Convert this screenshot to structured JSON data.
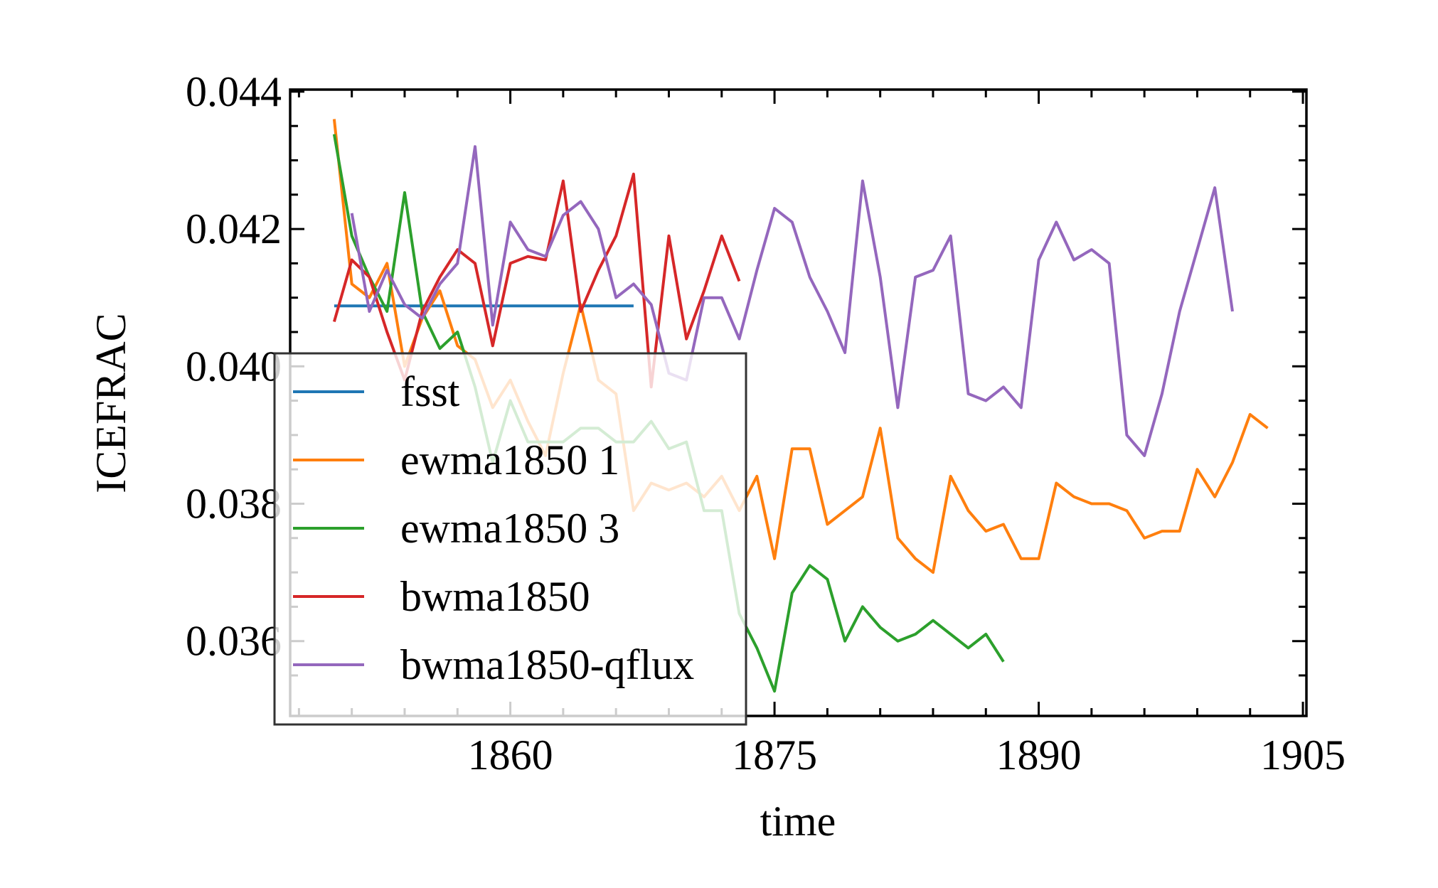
{
  "chart_data": {
    "type": "line",
    "xlabel": "time",
    "ylabel": "ICEFRAC",
    "xlim": [
      1847.5,
      1905.2
    ],
    "ylim": [
      0.03491,
      0.04403
    ],
    "xticks": [
      1860,
      1875,
      1890,
      1905
    ],
    "xminorticks": [
      1848,
      1851,
      1854,
      1857,
      1863,
      1866,
      1869,
      1872,
      1878,
      1881,
      1884,
      1887,
      1893,
      1896,
      1899,
      1902
    ],
    "yticks": [
      0.036,
      0.038,
      {
        "value": 0.04,
        "label": "0.040"
      },
      0.042,
      0.044
    ],
    "yminorticks": [
      0.0355,
      0.0365,
      0.037,
      0.0375,
      0.0385,
      0.039,
      0.0395,
      0.0405,
      0.041,
      0.0415,
      0.0425,
      0.043,
      0.0435
    ],
    "legend": "lower left",
    "series": [
      {
        "name": "fsst",
        "color": "#1f77b4",
        "x": [
          1850,
          1851,
          1852,
          1853,
          1854,
          1855,
          1856,
          1857,
          1858,
          1859,
          1860,
          1861,
          1862,
          1863,
          1864,
          1865,
          1866,
          1867
        ],
        "values": [
          0.04088,
          0.04088,
          0.04088,
          0.04088,
          0.04088,
          0.04088,
          0.04088,
          0.04088,
          0.04088,
          0.04088,
          0.04088,
          0.04088,
          0.04088,
          0.04088,
          0.04088,
          0.04088,
          0.04088,
          0.04088
        ]
      },
      {
        "name": "ewma1850 1",
        "color": "#ff7f0e",
        "x": [
          1850,
          1851,
          1852,
          1853,
          1854,
          1855,
          1856,
          1857,
          1858,
          1859,
          1860,
          1861,
          1862,
          1863,
          1864,
          1865,
          1866,
          1867,
          1868,
          1869,
          1870,
          1871,
          1872,
          1873,
          1874,
          1875,
          1876,
          1877,
          1878,
          1879,
          1880,
          1881,
          1882,
          1883,
          1884,
          1885,
          1886,
          1887,
          1888,
          1889,
          1890,
          1891,
          1892,
          1893,
          1894,
          1895,
          1896,
          1897,
          1898,
          1899,
          1900,
          1901,
          1902,
          1903
        ],
        "values": [
          0.0436,
          0.0412,
          0.041,
          0.0415,
          0.04,
          0.0407,
          0.0411,
          0.0403,
          0.0401,
          0.0394,
          0.0398,
          0.0392,
          0.0387,
          0.0399,
          0.0409,
          0.0398,
          0.0396,
          0.0379,
          0.0383,
          0.0382,
          0.0383,
          0.0381,
          0.0384,
          0.0379,
          0.0384,
          0.0372,
          0.0388,
          0.0388,
          0.0377,
          0.0379,
          0.0381,
          0.0391,
          0.0375,
          0.0372,
          0.037,
          0.0384,
          0.0379,
          0.0376,
          0.0377,
          0.0372,
          0.0372,
          0.0383,
          0.0381,
          0.038,
          0.038,
          0.0379,
          0.0375,
          0.0376,
          0.0376,
          0.0385,
          0.0381,
          0.0386,
          0.0393,
          0.0391
        ]
      },
      {
        "name": "ewma1850 3",
        "color": "#2ca02c",
        "x": [
          1850,
          1851,
          1852,
          1853,
          1854,
          1855,
          1856,
          1857,
          1858,
          1859,
          1860,
          1861,
          1862,
          1863,
          1864,
          1865,
          1866,
          1867,
          1868,
          1869,
          1870,
          1871,
          1872,
          1873,
          1874,
          1875,
          1876,
          1877,
          1878,
          1879,
          1880,
          1881,
          1882,
          1883,
          1884,
          1885,
          1886,
          1887,
          1888
        ],
        "values": [
          0.04338,
          0.0419,
          0.0413,
          0.0408,
          0.04253,
          0.0408,
          0.04026,
          0.0405,
          0.0397,
          0.0386,
          0.0395,
          0.0389,
          0.0389,
          0.0389,
          0.0391,
          0.0391,
          0.0389,
          0.0389,
          0.0392,
          0.0388,
          0.0389,
          0.0379,
          0.0379,
          0.0364,
          0.0359,
          0.03527,
          0.0367,
          0.0371,
          0.0369,
          0.036,
          0.0365,
          0.0362,
          0.036,
          0.0361,
          0.0363,
          0.0361,
          0.0359,
          0.0361,
          0.0357
        ]
      },
      {
        "name": "bwma1850",
        "color": "#d62728",
        "x": [
          1850,
          1851,
          1852,
          1853,
          1854,
          1855,
          1856,
          1857,
          1858,
          1859,
          1860,
          1861,
          1862,
          1863,
          1864,
          1865,
          1866,
          1867,
          1868,
          1869,
          1870,
          1871,
          1872,
          1873
        ],
        "values": [
          0.04065,
          0.04155,
          0.0413,
          0.0405,
          0.0398,
          0.0408,
          0.0413,
          0.0417,
          0.0415,
          0.0403,
          0.0415,
          0.0416,
          0.04155,
          0.0427,
          0.0408,
          0.0414,
          0.0419,
          0.0428,
          0.0397,
          0.0419,
          0.0404,
          0.0411,
          0.0419,
          0.04124
        ]
      },
      {
        "name": "bwma1850-qflux",
        "color": "#9467bd",
        "x": [
          1851,
          1852,
          1853,
          1854,
          1855,
          1856,
          1857,
          1858,
          1859,
          1860,
          1861,
          1862,
          1863,
          1864,
          1865,
          1866,
          1867,
          1868,
          1869,
          1870,
          1871,
          1872,
          1873,
          1874,
          1875,
          1876,
          1877,
          1878,
          1879,
          1880,
          1881,
          1882,
          1883,
          1884,
          1885,
          1886,
          1887,
          1888,
          1889,
          1890,
          1891,
          1892,
          1893,
          1894,
          1895,
          1896,
          1897,
          1898,
          1899,
          1900,
          1901
        ],
        "values": [
          0.04223,
          0.0408,
          0.0414,
          0.0409,
          0.0407,
          0.0412,
          0.0415,
          0.0432,
          0.0406,
          0.0421,
          0.0417,
          0.0416,
          0.0422,
          0.0424,
          0.042,
          0.041,
          0.0412,
          0.0409,
          0.0399,
          0.0398,
          0.041,
          0.041,
          0.0404,
          0.0414,
          0.0423,
          0.0421,
          0.0413,
          0.0408,
          0.0402,
          0.0427,
          0.0413,
          0.0394,
          0.0413,
          0.0414,
          0.0419,
          0.0396,
          0.0395,
          0.0397,
          0.0394,
          0.04155,
          0.0421,
          0.04155,
          0.0417,
          0.0415,
          0.039,
          0.0387,
          0.0396,
          0.0408,
          0.0417,
          0.0426,
          0.0408
        ]
      }
    ]
  }
}
